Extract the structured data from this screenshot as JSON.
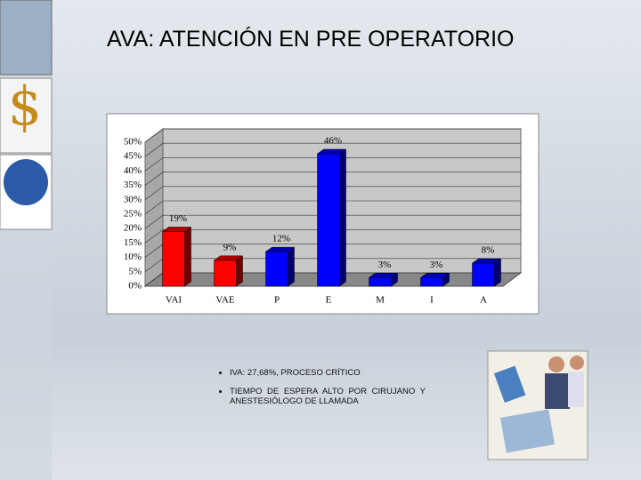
{
  "title": "AVA: ATENCIÓN EN PRE OPERATORIO",
  "chart_data": {
    "type": "bar",
    "categories": [
      "VAI",
      "VAE",
      "P",
      "E",
      "M",
      "I",
      "A"
    ],
    "values": [
      19,
      9,
      12,
      46,
      3,
      3,
      8
    ],
    "value_labels": [
      "19%",
      "9%",
      "12%",
      "46%",
      "3%",
      "3%",
      "8%"
    ],
    "colors": [
      "#ff0000",
      "#ff0000",
      "#0000ff",
      "#0000ff",
      "#0000ff",
      "#0000ff",
      "#0000ff"
    ],
    "ylim": [
      0,
      50
    ],
    "yticks": [
      {
        "value": 0,
        "label": "0%"
      },
      {
        "value": 5,
        "label": "5%"
      },
      {
        "value": 10,
        "label": "10%"
      },
      {
        "value": 15,
        "label": "15%"
      },
      {
        "value": 20,
        "label": "20%"
      },
      {
        "value": 25,
        "label": "25%"
      },
      {
        "value": 30,
        "label": "30%"
      },
      {
        "value": 35,
        "label": "35%"
      },
      {
        "value": 40,
        "label": "40%"
      },
      {
        "value": 45,
        "label": "45%"
      },
      {
        "value": 50,
        "label": "50%"
      }
    ],
    "grid": true
  },
  "bullets": [
    "IVA: 27,68%, PROCESO CRÍTICO",
    "TIEMPO DE ESPERA ALTO POR CIRUJANO Y ANESTESIÓLOGO DE LLAMADA"
  ]
}
